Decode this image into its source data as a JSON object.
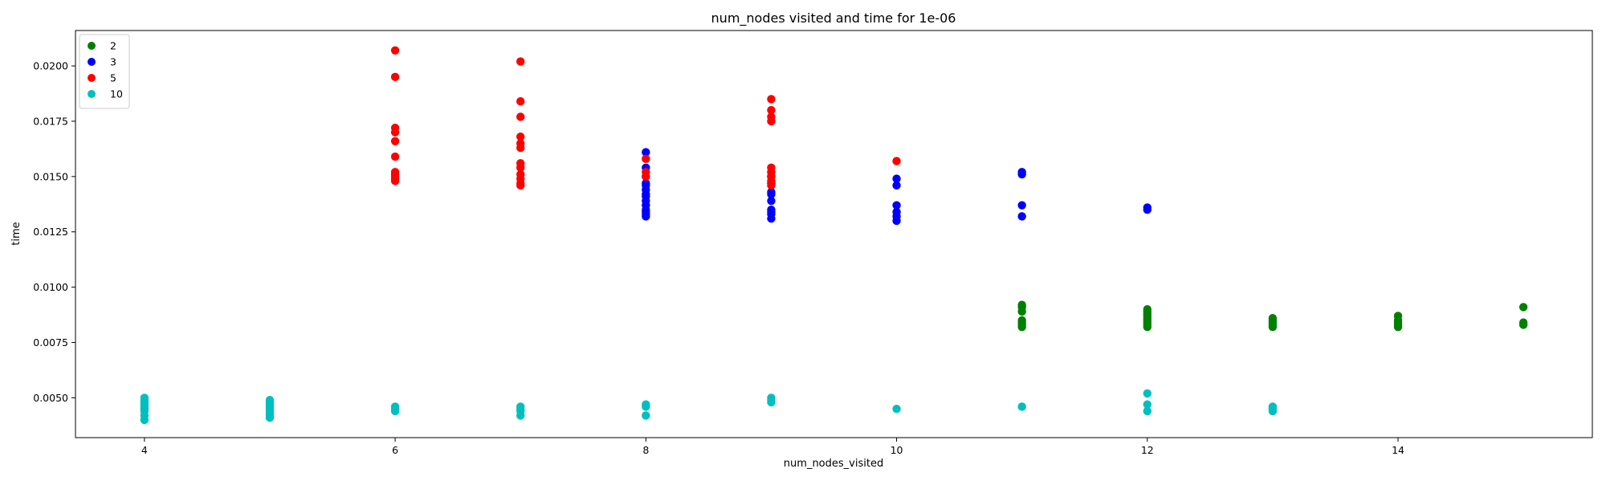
{
  "chart_data": {
    "type": "scatter",
    "title": "num_nodes visited and time for 1e-06",
    "xlabel": "num_nodes_visited",
    "ylabel": "time",
    "xlim": [
      3.45,
      15.55
    ],
    "ylim": [
      0.0032,
      0.0216
    ],
    "xticks": [
      4,
      6,
      8,
      10,
      12,
      14
    ],
    "yticks": [
      0.005,
      0.0075,
      0.01,
      0.0125,
      0.015,
      0.0175,
      0.02
    ],
    "ytick_labels": [
      "0.0050",
      "0.0075",
      "0.0100",
      "0.0125",
      "0.0150",
      "0.0175",
      "0.0200"
    ],
    "grid": false,
    "legend_placement": "top-left",
    "series": [
      {
        "name": "2",
        "color": "#008000",
        "points": [
          [
            11,
            0.0082
          ],
          [
            11,
            0.0083
          ],
          [
            11,
            0.0084
          ],
          [
            11,
            0.0085
          ],
          [
            11,
            0.0089
          ],
          [
            11,
            0.0091
          ],
          [
            11,
            0.0092
          ],
          [
            12,
            0.0082
          ],
          [
            12,
            0.0083
          ],
          [
            12,
            0.0084
          ],
          [
            12,
            0.0085
          ],
          [
            12,
            0.0086
          ],
          [
            12,
            0.0087
          ],
          [
            12,
            0.0088
          ],
          [
            12,
            0.0089
          ],
          [
            12,
            0.009
          ],
          [
            13,
            0.0082
          ],
          [
            13,
            0.0083
          ],
          [
            13,
            0.0084
          ],
          [
            13,
            0.0085
          ],
          [
            13,
            0.0086
          ],
          [
            14,
            0.0082
          ],
          [
            14,
            0.0083
          ],
          [
            14,
            0.0084
          ],
          [
            14,
            0.0085
          ],
          [
            14,
            0.0087
          ],
          [
            15,
            0.0083
          ],
          [
            15,
            0.0084
          ],
          [
            15,
            0.0091
          ]
        ]
      },
      {
        "name": "3",
        "color": "#0000ff",
        "points": [
          [
            8,
            0.0132
          ],
          [
            8,
            0.0133
          ],
          [
            8,
            0.0134
          ],
          [
            8,
            0.0135
          ],
          [
            8,
            0.0137
          ],
          [
            8,
            0.0139
          ],
          [
            8,
            0.0141
          ],
          [
            8,
            0.0142
          ],
          [
            8,
            0.0144
          ],
          [
            8,
            0.0146
          ],
          [
            8,
            0.0147
          ],
          [
            8,
            0.015
          ],
          [
            8,
            0.0154
          ],
          [
            8,
            0.0161
          ],
          [
            9,
            0.0131
          ],
          [
            9,
            0.0133
          ],
          [
            9,
            0.0134
          ],
          [
            9,
            0.0135
          ],
          [
            9,
            0.0139
          ],
          [
            9,
            0.0142
          ],
          [
            9,
            0.0143
          ],
          [
            9,
            0.0147
          ],
          [
            9,
            0.015
          ],
          [
            10,
            0.013
          ],
          [
            10,
            0.0132
          ],
          [
            10,
            0.0134
          ],
          [
            10,
            0.0137
          ],
          [
            10,
            0.0146
          ],
          [
            10,
            0.0149
          ],
          [
            11,
            0.0132
          ],
          [
            11,
            0.0137
          ],
          [
            11,
            0.0151
          ],
          [
            11,
            0.0152
          ],
          [
            12,
            0.0135
          ],
          [
            12,
            0.0136
          ]
        ]
      },
      {
        "name": "5",
        "color": "#ff0000",
        "points": [
          [
            6,
            0.0148
          ],
          [
            6,
            0.0149
          ],
          [
            6,
            0.015
          ],
          [
            6,
            0.0151
          ],
          [
            6,
            0.0152
          ],
          [
            6,
            0.0159
          ],
          [
            6,
            0.0166
          ],
          [
            6,
            0.017
          ],
          [
            6,
            0.0172
          ],
          [
            6,
            0.0195
          ],
          [
            6,
            0.0207
          ],
          [
            7,
            0.0146
          ],
          [
            7,
            0.0147
          ],
          [
            7,
            0.0149
          ],
          [
            7,
            0.0151
          ],
          [
            7,
            0.0154
          ],
          [
            7,
            0.0156
          ],
          [
            7,
            0.0163
          ],
          [
            7,
            0.0165
          ],
          [
            7,
            0.0168
          ],
          [
            7,
            0.0177
          ],
          [
            7,
            0.0184
          ],
          [
            7,
            0.0202
          ],
          [
            8,
            0.015
          ],
          [
            8,
            0.0152
          ],
          [
            8,
            0.0158
          ],
          [
            9,
            0.0146
          ],
          [
            9,
            0.0148
          ],
          [
            9,
            0.015
          ],
          [
            9,
            0.0152
          ],
          [
            9,
            0.0154
          ],
          [
            9,
            0.0175
          ],
          [
            9,
            0.0177
          ],
          [
            9,
            0.018
          ],
          [
            9,
            0.0185
          ],
          [
            10,
            0.0157
          ]
        ]
      },
      {
        "name": "10",
        "color": "#00bfbf",
        "points": [
          [
            4,
            0.004
          ],
          [
            4,
            0.0042
          ],
          [
            4,
            0.0044
          ],
          [
            4,
            0.0045
          ],
          [
            4,
            0.0046
          ],
          [
            4,
            0.0047
          ],
          [
            4,
            0.0048
          ],
          [
            4,
            0.0049
          ],
          [
            4,
            0.005
          ],
          [
            5,
            0.0041
          ],
          [
            5,
            0.0042
          ],
          [
            5,
            0.0043
          ],
          [
            5,
            0.0044
          ],
          [
            5,
            0.0045
          ],
          [
            5,
            0.0046
          ],
          [
            5,
            0.0047
          ],
          [
            5,
            0.0048
          ],
          [
            5,
            0.0049
          ],
          [
            6,
            0.0044
          ],
          [
            6,
            0.0045
          ],
          [
            6,
            0.0046
          ],
          [
            7,
            0.0042
          ],
          [
            7,
            0.0044
          ],
          [
            7,
            0.0045
          ],
          [
            7,
            0.0046
          ],
          [
            8,
            0.0042
          ],
          [
            8,
            0.0046
          ],
          [
            8,
            0.0047
          ],
          [
            9,
            0.0048
          ],
          [
            9,
            0.0049
          ],
          [
            9,
            0.005
          ],
          [
            10,
            0.0045
          ],
          [
            11,
            0.0046
          ],
          [
            12,
            0.0044
          ],
          [
            12,
            0.0047
          ],
          [
            12,
            0.0052
          ],
          [
            13,
            0.0044
          ],
          [
            13,
            0.0045
          ],
          [
            13,
            0.0046
          ]
        ]
      }
    ]
  }
}
